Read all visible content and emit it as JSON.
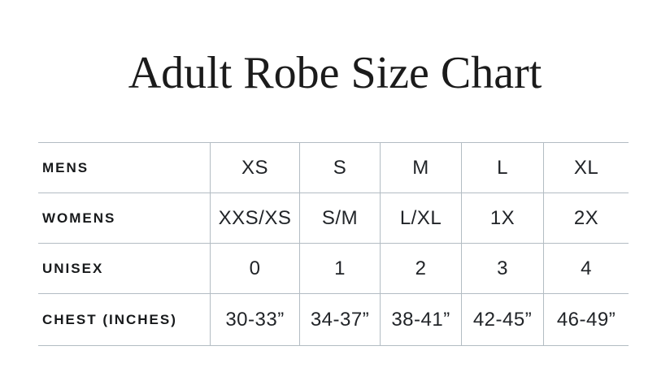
{
  "page": {
    "background": "#ffffff",
    "title": "Adult Robe Size Chart"
  },
  "size_chart": {
    "rows": [
      {
        "label": "MENS",
        "values": [
          "XS",
          "S",
          "M",
          "L",
          "XL"
        ]
      },
      {
        "label": "WOMENS",
        "values": [
          "XXS/XS",
          "S/M",
          "L/XL",
          "1X",
          "2X"
        ]
      },
      {
        "label": "UNISEX",
        "values": [
          "0",
          "1",
          "2",
          "3",
          "4"
        ]
      },
      {
        "label": "CHEST (INCHES)",
        "values": [
          "30-33”",
          "34-37”",
          "38-41”",
          "42-45”",
          "46-49”"
        ]
      }
    ],
    "colors": {
      "grid_line": "#b3bcc3",
      "title_text": "#1b1b1b",
      "label_text": "#17191b",
      "value_text": "#212428"
    }
  }
}
